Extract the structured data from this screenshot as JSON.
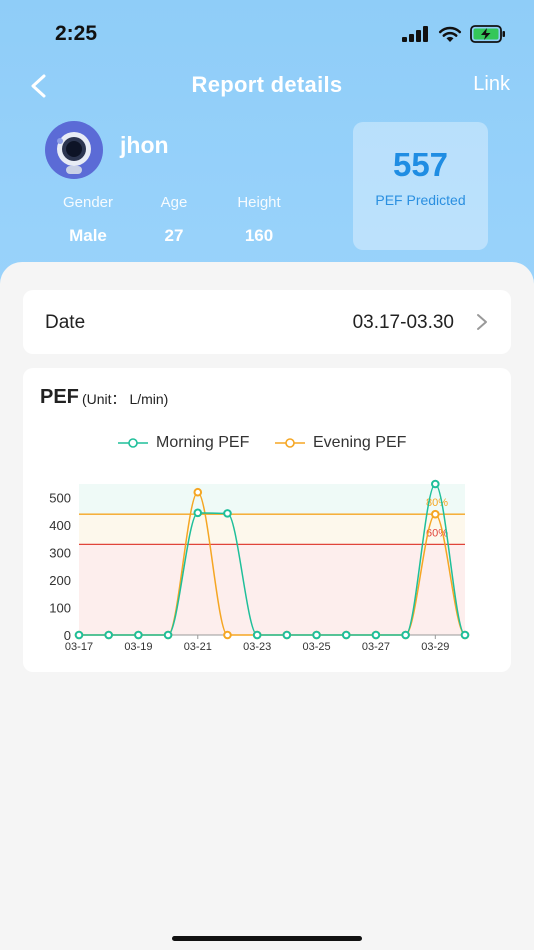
{
  "status": {
    "time": "2:25"
  },
  "nav": {
    "title": "Report details",
    "link_label": "Link"
  },
  "user": {
    "name": "jhon",
    "gender_label": "Gender",
    "gender": "Male",
    "age_label": "Age",
    "age": "27",
    "height_label": "Height",
    "height": "160"
  },
  "pef_predicted": {
    "value": "557",
    "label": "PEF Predicted"
  },
  "date_row": {
    "label": "Date",
    "value": "03.17-03.30"
  },
  "chart_header": {
    "title": "PEF",
    "unit": "(Unit： L/min)"
  },
  "colors": {
    "morning": "#1fbf9a",
    "evening": "#f5a623",
    "line80": "#f5a623",
    "line60": "#e0443a",
    "accent": "#1f8de3"
  },
  "chart_data": {
    "type": "line",
    "x": [
      "03-17",
      "03-18",
      "03-19",
      "03-20",
      "03-21",
      "03-22",
      "03-23",
      "03-24",
      "03-25",
      "03-26",
      "03-27",
      "03-28",
      "03-29",
      "03-30"
    ],
    "x_tick_labels": [
      "03-17",
      "03-19",
      "03-21",
      "03-23",
      "03-25",
      "03-27",
      "03-29"
    ],
    "ylim": [
      0,
      550
    ],
    "y_ticks": [
      0,
      100,
      200,
      300,
      400,
      500
    ],
    "legend_position": "top-center",
    "series": [
      {
        "name": "Morning PEF",
        "values": [
          0,
          0,
          0,
          0,
          445,
          443,
          0,
          0,
          0,
          0,
          0,
          0,
          550,
          0
        ]
      },
      {
        "name": "Evening PEF",
        "values": [
          0,
          0,
          0,
          0,
          520,
          0,
          0,
          0,
          0,
          0,
          0,
          0,
          440,
          0
        ]
      }
    ],
    "reference_lines": [
      {
        "label": "80%",
        "value": 440
      },
      {
        "label": "60%",
        "value": 330
      }
    ]
  }
}
